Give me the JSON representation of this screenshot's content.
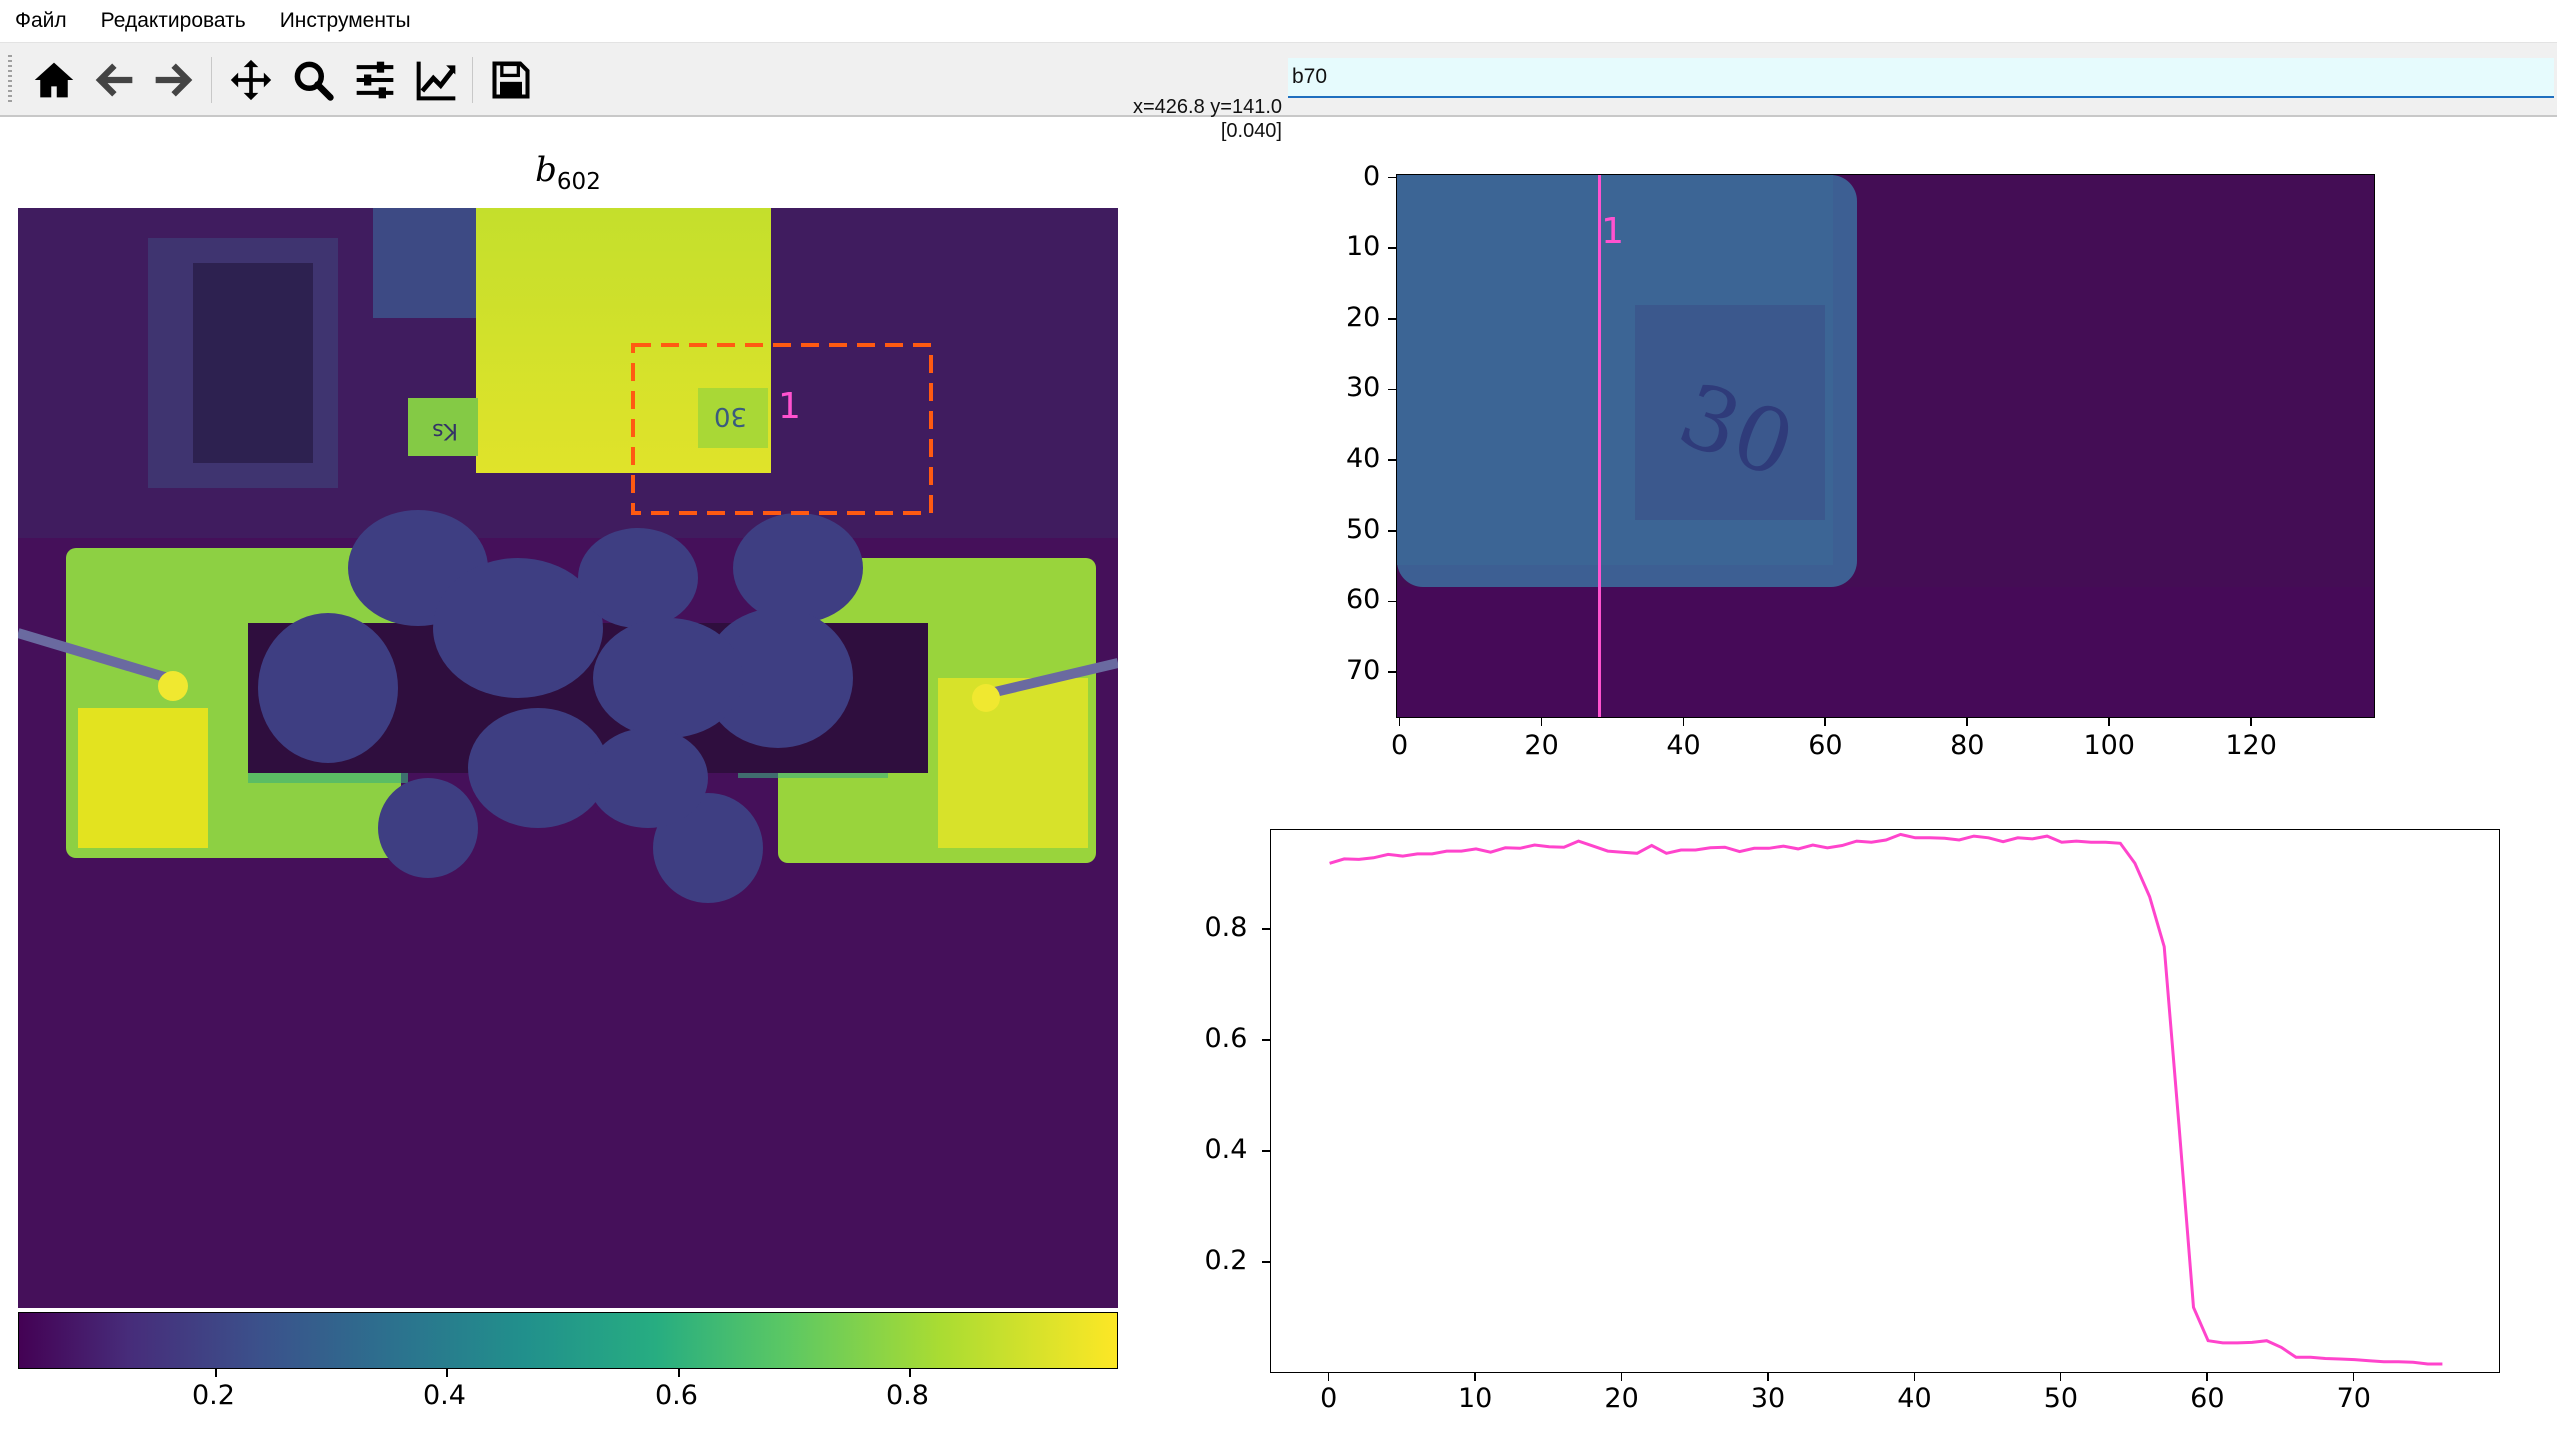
{
  "menu": {
    "items": [
      "Файл",
      "Редактировать",
      "Инструменты"
    ]
  },
  "toolbar": {
    "buttons": [
      {
        "name": "home-icon",
        "tooltip": "Home"
      },
      {
        "name": "back-icon",
        "tooltip": "Back"
      },
      {
        "name": "forward-icon",
        "tooltip": "Forward"
      },
      {
        "name": "pan-icon",
        "tooltip": "Pan"
      },
      {
        "name": "zoom-icon",
        "tooltip": "Zoom"
      },
      {
        "name": "subplots-icon",
        "tooltip": "Subplots"
      },
      {
        "name": "axes-edit-icon",
        "tooltip": "Edit axes"
      },
      {
        "name": "save-icon",
        "tooltip": "Save"
      }
    ],
    "coord_line1": "x=426.8 y=141.0",
    "coord_line2": "[0.040]",
    "command_value": "b70"
  },
  "main_plot": {
    "title_main": "b",
    "title_sub": "602",
    "roi_label": "1",
    "colorbar_ticks": [
      "0.2",
      "0.4",
      "0.6",
      "0.8"
    ],
    "colorbar_range": [
      0.0,
      0.96
    ],
    "colormap": "viridis"
  },
  "inset_plot": {
    "line_label": "1",
    "x_ticks": [
      "0",
      "20",
      "40",
      "60",
      "80",
      "100",
      "120"
    ],
    "y_ticks": [
      "0",
      "10",
      "20",
      "30",
      "40",
      "50",
      "60",
      "70"
    ],
    "x_range": [
      -0.5,
      137.5
    ],
    "y_range": [
      76.5,
      -0.5
    ],
    "line_x": 28,
    "card_text": "30"
  },
  "chart_data": {
    "type": "line",
    "color": "#ff44cc",
    "x": [
      0,
      1,
      2,
      3,
      4,
      5,
      6,
      7,
      8,
      9,
      10,
      11,
      12,
      13,
      14,
      15,
      16,
      17,
      18,
      19,
      20,
      21,
      22,
      23,
      24,
      25,
      26,
      27,
      28,
      29,
      30,
      31,
      32,
      33,
      34,
      35,
      36,
      37,
      38,
      39,
      40,
      41,
      42,
      43,
      44,
      45,
      46,
      47,
      48,
      49,
      50,
      51,
      52,
      53,
      54,
      55,
      56,
      57,
      58,
      59,
      60,
      61,
      62,
      63,
      64,
      65,
      66,
      67,
      68,
      69,
      70,
      71,
      72,
      73,
      74,
      75,
      76
    ],
    "values": [
      0.92,
      0.928,
      0.927,
      0.93,
      0.936,
      0.933,
      0.937,
      0.937,
      0.942,
      0.942,
      0.946,
      0.94,
      0.948,
      0.947,
      0.953,
      0.95,
      0.949,
      0.96,
      0.951,
      0.942,
      0.94,
      0.938,
      0.952,
      0.938,
      0.944,
      0.944,
      0.948,
      0.949,
      0.941,
      0.947,
      0.947,
      0.951,
      0.946,
      0.953,
      0.948,
      0.952,
      0.96,
      0.958,
      0.962,
      0.972,
      0.966,
      0.966,
      0.965,
      0.962,
      0.969,
      0.966,
      0.959,
      0.966,
      0.964,
      0.969,
      0.958,
      0.96,
      0.958,
      0.958,
      0.956,
      0.92,
      0.86,
      0.77,
      0.45,
      0.12,
      0.06,
      0.056,
      0.056,
      0.057,
      0.06,
      0.048,
      0.03,
      0.03,
      0.028,
      0.027,
      0.026,
      0.024,
      0.022,
      0.022,
      0.021,
      0.018,
      0.018
    ],
    "x_ticks": [
      "0",
      "10",
      "20",
      "30",
      "40",
      "50",
      "60",
      "70"
    ],
    "y_ticks": [
      "0.2",
      "0.4",
      "0.6",
      "0.8"
    ],
    "xlim": [
      -4,
      80
    ],
    "ylim": [
      0.0,
      0.98
    ],
    "grid": false
  }
}
